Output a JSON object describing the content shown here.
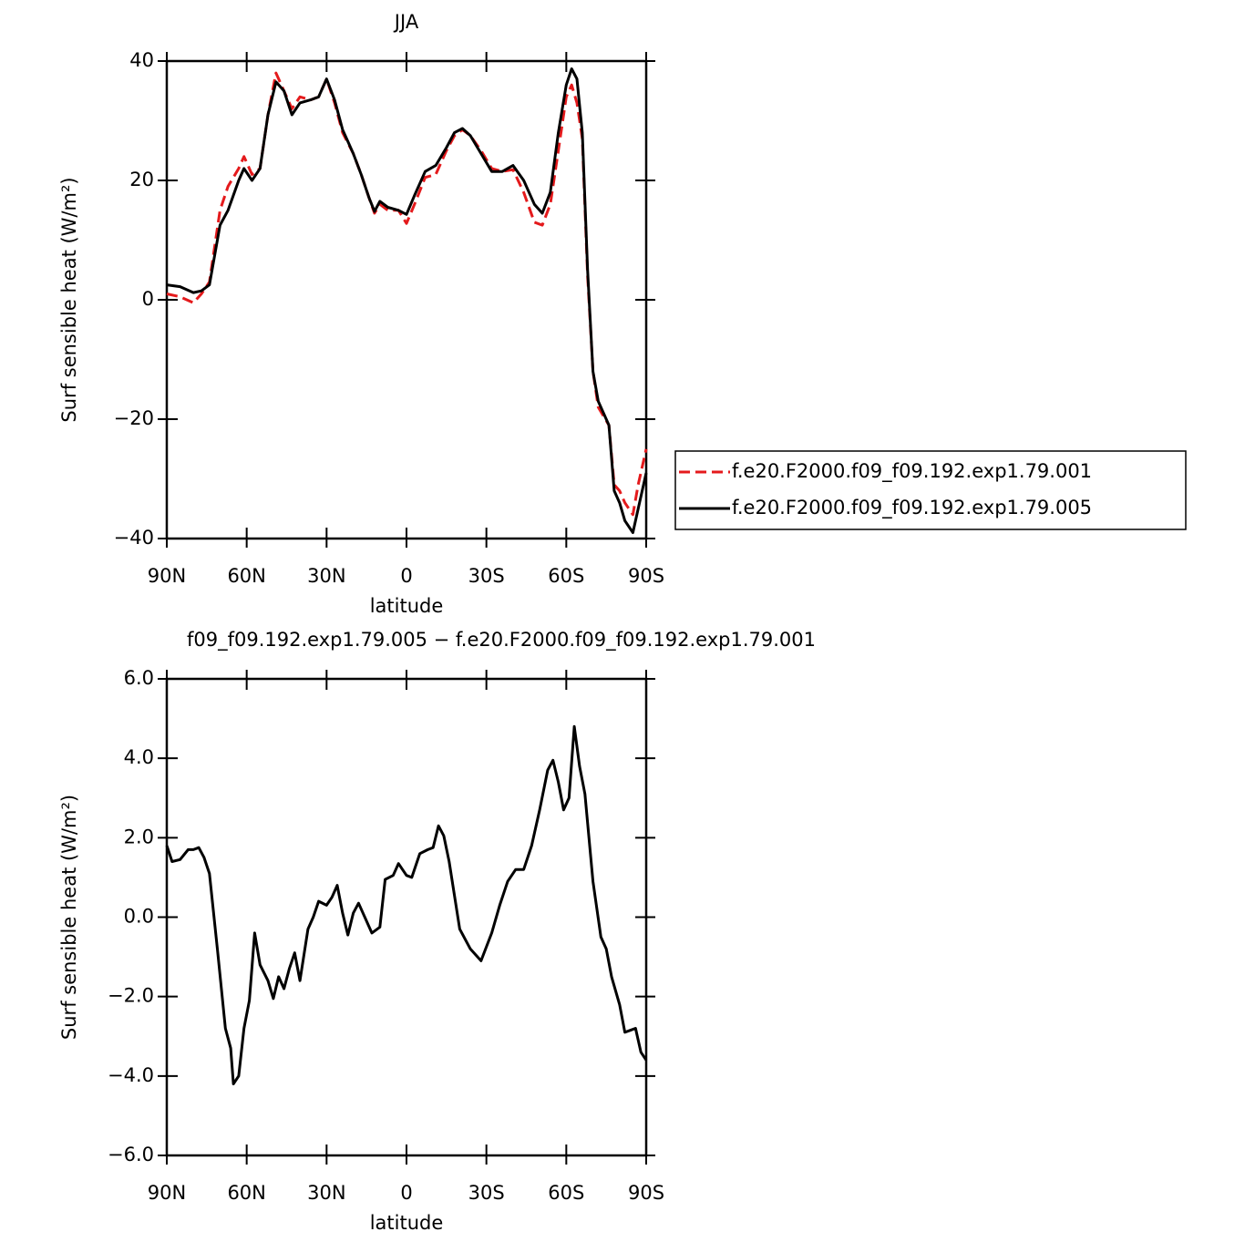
{
  "chart_data": [
    {
      "type": "line",
      "title": "JJA",
      "xlabel": "latitude",
      "ylabel": "Surf sensible heat (W/m²)",
      "xlim": [
        90,
        -90
      ],
      "xticks": [
        {
          "value": 90,
          "label": "90N"
        },
        {
          "value": 60,
          "label": "60N"
        },
        {
          "value": 30,
          "label": "30N"
        },
        0,
        {
          "value": -30,
          "label": "30S"
        },
        {
          "value": -60,
          "label": "60S"
        },
        {
          "value": -90,
          "label": "90S"
        }
      ],
      "ylim": [
        -40,
        40
      ],
      "yticks": [
        {
          "value": -40,
          "label": "−40"
        },
        {
          "value": -20,
          "label": "−20"
        },
        0,
        20,
        40
      ],
      "legend": "right",
      "x": [
        90,
        85,
        80,
        77,
        74,
        70,
        67,
        63,
        61,
        58,
        55,
        52,
        49,
        46,
        43,
        40,
        36,
        33,
        30,
        27,
        24,
        20,
        17,
        14,
        12,
        10,
        7,
        3,
        0,
        -3,
        -7,
        -11,
        -15,
        -18,
        -21,
        -24,
        -28,
        -32,
        -36,
        -40,
        -44,
        -48,
        -51,
        -54,
        -57,
        -60,
        -62,
        -64,
        -66,
        -68,
        -70,
        -72,
        -74,
        -76,
        -78,
        -80,
        -82,
        -85,
        -87,
        -90
      ],
      "series": [
        {
          "name": "f.e20.F2000.f09_f09.192.exp1.79.001",
          "color": "#e41a1c",
          "line_style": "dashed",
          "values": [
            1,
            0.5,
            -0.5,
            1,
            3,
            15,
            19,
            22,
            24,
            21,
            22,
            31,
            38,
            35,
            32,
            34,
            33.5,
            34,
            37,
            33,
            28,
            24.5,
            21,
            17,
            14.5,
            16,
            15,
            15,
            12.8,
            16,
            20.5,
            21,
            25,
            27.5,
            28.5,
            27.5,
            25,
            22,
            21.5,
            21.8,
            18,
            13,
            12.5,
            16,
            25,
            34,
            36,
            33,
            27,
            4,
            -12,
            -18,
            -19.5,
            -21,
            -31,
            -32,
            -34,
            -36,
            -31,
            -25
          ]
        },
        {
          "name": "f.e20.F2000.f09_f09.192.exp1.79.005",
          "color": "#000000",
          "line_style": "solid",
          "values": [
            2.5,
            2.2,
            1.2,
            1.5,
            2.5,
            12.5,
            15,
            20,
            22,
            20,
            22,
            31,
            36.5,
            35,
            31,
            33,
            33.5,
            34,
            37,
            33.5,
            28.5,
            24.5,
            21,
            17,
            14.8,
            16.5,
            15.5,
            15,
            14.3,
            17.5,
            21.5,
            22.5,
            25.5,
            28,
            28.7,
            27.5,
            24.5,
            21.5,
            21.5,
            22.5,
            20,
            16,
            14.5,
            18,
            28,
            36,
            38.7,
            37,
            28,
            5,
            -12,
            -17,
            -19,
            -21,
            -32,
            -34,
            -37,
            -39,
            -35,
            -29
          ]
        }
      ]
    },
    {
      "type": "line",
      "title": "f09_f09.192.exp1.79.005 − f.e20.F2000.f09_f09.192.exp1.79.001",
      "xlabel": "latitude",
      "ylabel": "Surf sensible heat (W/m²)",
      "xlim": [
        90,
        -90
      ],
      "xticks": [
        {
          "value": 90,
          "label": "90N"
        },
        {
          "value": 60,
          "label": "60N"
        },
        {
          "value": 30,
          "label": "30N"
        },
        0,
        {
          "value": -30,
          "label": "30S"
        },
        {
          "value": -60,
          "label": "60S"
        },
        {
          "value": -90,
          "label": "90S"
        }
      ],
      "ylim": [
        -6,
        6
      ],
      "yticks": [
        {
          "value": -6,
          "label": "−6.0"
        },
        {
          "value": -4,
          "label": "−4.0"
        },
        {
          "value": -2,
          "label": "−2.0"
        },
        {
          "value": 0,
          "label": "0.0"
        },
        {
          "value": 2,
          "label": "2.0"
        },
        {
          "value": 4,
          "label": "4.0"
        },
        {
          "value": 6,
          "label": "6.0"
        }
      ],
      "x": [
        90,
        88,
        85,
        82,
        80,
        78,
        76,
        74,
        71,
        68,
        66,
        65,
        63,
        61,
        59,
        57,
        55,
        52,
        50,
        48,
        46,
        44,
        42,
        40,
        37,
        35,
        33,
        30,
        28,
        26,
        24,
        22,
        20,
        18,
        15,
        13,
        10,
        8,
        5,
        3,
        0,
        -2,
        -5,
        -8,
        -10,
        -12,
        -14,
        -16,
        -20,
        -24,
        -28,
        -32,
        -35,
        -38,
        -41,
        -44,
        -47,
        -50,
        -53,
        -55,
        -57,
        -59,
        -61,
        -63,
        -65,
        -67,
        -70,
        -73,
        -75,
        -77,
        -80,
        -82,
        -84,
        -86,
        -88,
        -90
      ],
      "color": "#000000",
      "values": [
        1.8,
        1.4,
        1.45,
        1.7,
        1.7,
        1.75,
        1.5,
        1.1,
        -0.8,
        -2.8,
        -3.3,
        -4.2,
        -4,
        -2.8,
        -2.1,
        -0.4,
        -1.2,
        -1.6,
        -2.05,
        -1.5,
        -1.8,
        -1.3,
        -0.9,
        -1.6,
        -0.3,
        0,
        0.4,
        0.3,
        0.5,
        0.8,
        0.1,
        -0.45,
        0.1,
        0.35,
        -0.1,
        -0.4,
        -0.25,
        0.95,
        1.05,
        1.35,
        1.05,
        1.0,
        1.6,
        1.7,
        1.75,
        2.3,
        2.05,
        1.4,
        -0.3,
        -0.8,
        -1.1,
        -0.4,
        0.3,
        0.9,
        1.2,
        1.2,
        1.8,
        2.7,
        3.7,
        3.95,
        3.4,
        2.7,
        3.0,
        4.8,
        3.8,
        3.1,
        0.9,
        -0.5,
        -0.8,
        -1.5,
        -2.2,
        -2.9,
        -2.85,
        -2.8,
        -3.4,
        -3.6
      ]
    }
  ]
}
